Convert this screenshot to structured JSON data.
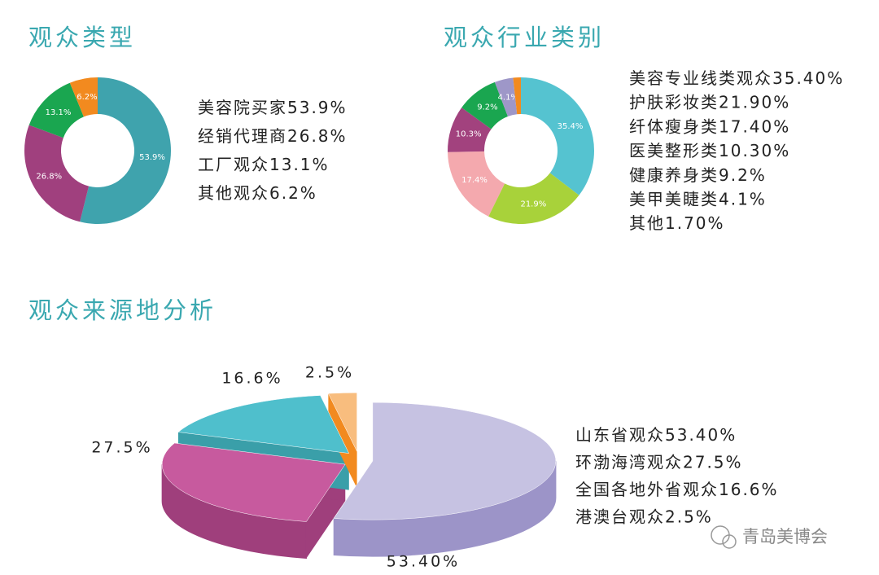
{
  "chart_data": [
    {
      "type": "pie",
      "donut": true,
      "title": "观众类型",
      "categories": [
        "美容院买家",
        "经销代理商",
        "工厂观众",
        "其他观众"
      ],
      "values": [
        53.9,
        26.8,
        13.1,
        6.2
      ],
      "value_labels": [
        "53.9%",
        "26.8%",
        "13.1%",
        "6.2%"
      ],
      "colors": [
        "#3fa3ad",
        "#a0407e",
        "#1aa650",
        "#f28a1f"
      ]
    },
    {
      "type": "pie",
      "donut": true,
      "title": "观众行业类别",
      "categories": [
        "美容专业线类观众",
        "护肤彩妆类",
        "纤体瘦身类",
        "医美整形类",
        "健康养身类",
        "美甲美睫类",
        "其他"
      ],
      "values": [
        35.4,
        21.9,
        17.4,
        10.3,
        9.2,
        4.1,
        1.7
      ],
      "value_labels": [
        "35.4%",
        "21.9%",
        "17.4%",
        "10.3%",
        "9.2%",
        "4.1%",
        null
      ],
      "legend_value_labels": [
        "35.40%",
        "21.90%",
        "17.40%",
        "10.30%",
        "9.2%",
        "4.1%",
        "1.70%"
      ],
      "colors": [
        "#55c3d0",
        "#a8d23a",
        "#f4a9ae",
        "#a2427e",
        "#1aa650",
        "#9e97c8",
        "#f28a1f"
      ]
    },
    {
      "type": "pie",
      "3d": true,
      "title": "观众来源地分析",
      "categories": [
        "山东省观众",
        "环渤海湾观众",
        "全国各地外省观众",
        "港澳台观众"
      ],
      "values": [
        53.4,
        27.5,
        16.6,
        2.5
      ],
      "value_labels": [
        "53.40%",
        "27.5%",
        "16.6%",
        "2.5%"
      ],
      "colors": [
        "#c6c2e2",
        "#c75a9e",
        "#4fbfcc",
        "#f8bd7e"
      ],
      "side_colors": [
        "#9c94c8",
        "#9f3f7c",
        "#3a9fa9",
        "#f28a1f"
      ]
    }
  ],
  "watermark": "青岛美博会"
}
